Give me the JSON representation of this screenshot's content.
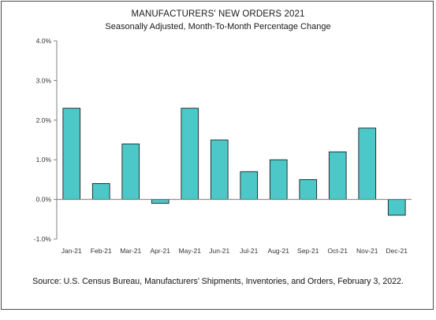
{
  "chart_data": {
    "type": "bar",
    "title": "MANUFACTURERS' NEW ORDERS 2021",
    "subtitle": "Seasonally Adjusted,  Month-To-Month Percentage Change",
    "xlabel": "",
    "ylabel": "",
    "categories": [
      "Jan-21",
      "Feb-21",
      "Mar-21",
      "Apr-21",
      "May-21",
      "Jun-21",
      "Jul-21",
      "Aug-21",
      "Sep-21",
      "Oct-21",
      "Nov-21",
      "Dec-21"
    ],
    "values": [
      2.3,
      0.4,
      1.4,
      -0.1,
      2.3,
      1.5,
      0.7,
      1.0,
      0.5,
      1.2,
      1.8,
      -0.4
    ],
    "ylim": [
      -1.0,
      4.0
    ],
    "yticks": [
      4.0,
      3.0,
      2.0,
      1.0,
      0.0,
      -1.0
    ],
    "ytick_labels": [
      "4.0%",
      "3.0%",
      "2.0%",
      "1.0%",
      "0.0%",
      "-1.0%"
    ],
    "grid": false,
    "bar_color": "#4cc8c8",
    "bar_edge_color": "#1f1f1f"
  },
  "source": "Source: U.S. Census Bureau, Manufacturers’ Shipments, Inventories, and Orders, February 3, 2022."
}
